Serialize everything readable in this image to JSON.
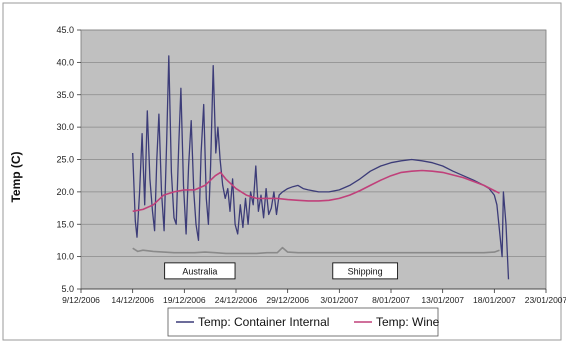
{
  "chart_data": {
    "type": "line",
    "ylabel": "Temp (C)",
    "ylim": [
      5.0,
      45.0
    ],
    "y_ticks": [
      "5.0",
      "10.0",
      "15.0",
      "20.0",
      "25.0",
      "30.0",
      "35.0",
      "40.0",
      "45.0"
    ],
    "x_range": [
      "2006-12-09",
      "2007-01-23"
    ],
    "x_ticks": [
      {
        "date": "2006-12-09",
        "label": "9/12/2006"
      },
      {
        "date": "2006-12-14",
        "label": "14/12/2006"
      },
      {
        "date": "2006-12-19",
        "label": "19/12/2006"
      },
      {
        "date": "2006-12-24",
        "label": "24/12/2006"
      },
      {
        "date": "2006-12-29",
        "label": "29/12/2006"
      },
      {
        "date": "2007-01-03",
        "label": "3/01/2007"
      },
      {
        "date": "2007-01-08",
        "label": "8/01/2007"
      },
      {
        "date": "2007-01-13",
        "label": "13/01/2007"
      },
      {
        "date": "2007-01-18",
        "label": "18/01/2007"
      },
      {
        "date": "2007-01-23",
        "label": "23/01/2007"
      }
    ],
    "grid": true,
    "plot_background": "#c0c0c0",
    "legend_position": "bottom",
    "annotations": [
      {
        "text": "Australia",
        "date": "2006-12-20T12:00",
        "y": 7.8
      },
      {
        "text": "Shipping",
        "date": "2007-01-05T12:00",
        "y": 7.8
      }
    ],
    "series": [
      {
        "name": "Temp: Container Internal",
        "color": "#3c3c78",
        "points": [
          [
            "2006-12-14T00:00",
            26.0
          ],
          [
            "2006-12-14T06:00",
            15.5
          ],
          [
            "2006-12-14T10:00",
            13.0
          ],
          [
            "2006-12-14T16:00",
            20.0
          ],
          [
            "2006-12-14T22:00",
            29.0
          ],
          [
            "2006-12-15T04:00",
            18.0
          ],
          [
            "2006-12-15T10:00",
            32.5
          ],
          [
            "2006-12-15T16:00",
            22.0
          ],
          [
            "2006-12-15T22:00",
            17.0
          ],
          [
            "2006-12-16T03:00",
            14.0
          ],
          [
            "2006-12-16T08:00",
            25.0
          ],
          [
            "2006-12-16T13:00",
            32.0
          ],
          [
            "2006-12-16T19:00",
            20.0
          ],
          [
            "2006-12-17T01:00",
            14.0
          ],
          [
            "2006-12-17T07:00",
            28.0
          ],
          [
            "2006-12-17T12:00",
            41.0
          ],
          [
            "2006-12-17T18:00",
            23.0
          ],
          [
            "2006-12-18T00:00",
            16.0
          ],
          [
            "2006-12-18T05:00",
            15.0
          ],
          [
            "2006-12-18T11:00",
            27.0
          ],
          [
            "2006-12-18T16:00",
            36.0
          ],
          [
            "2006-12-18T22:00",
            21.0
          ],
          [
            "2006-12-19T04:00",
            13.5
          ],
          [
            "2006-12-19T10:00",
            24.0
          ],
          [
            "2006-12-19T16:00",
            31.0
          ],
          [
            "2006-12-19T22:00",
            20.0
          ],
          [
            "2006-12-20T03:00",
            15.0
          ],
          [
            "2006-12-20T09:00",
            12.5
          ],
          [
            "2006-12-20T15:00",
            26.0
          ],
          [
            "2006-12-20T21:00",
            33.5
          ],
          [
            "2006-12-21T03:00",
            19.0
          ],
          [
            "2006-12-21T08:00",
            15.0
          ],
          [
            "2006-12-21T13:00",
            24.0
          ],
          [
            "2006-12-21T19:00",
            39.5
          ],
          [
            "2006-12-22T01:00",
            26.0
          ],
          [
            "2006-12-22T06:00",
            30.0
          ],
          [
            "2006-12-22T11:00",
            25.0
          ],
          [
            "2006-12-22T17:00",
            21.0
          ],
          [
            "2006-12-22T23:00",
            19.0
          ],
          [
            "2006-12-23T05:00",
            20.5
          ],
          [
            "2006-12-23T10:00",
            17.0
          ],
          [
            "2006-12-23T16:00",
            22.0
          ],
          [
            "2006-12-23T22:00",
            15.0
          ],
          [
            "2006-12-24T04:00",
            13.5
          ],
          [
            "2006-12-24T10:00",
            18.0
          ],
          [
            "2006-12-24T16:00",
            14.5
          ],
          [
            "2006-12-24T22:00",
            19.0
          ],
          [
            "2006-12-25T04:00",
            15.0
          ],
          [
            "2006-12-25T10:00",
            20.0
          ],
          [
            "2006-12-25T16:00",
            18.0
          ],
          [
            "2006-12-25T22:00",
            24.0
          ],
          [
            "2006-12-26T04:00",
            17.0
          ],
          [
            "2006-12-26T10:00",
            19.5
          ],
          [
            "2006-12-26T16:00",
            16.0
          ],
          [
            "2006-12-26T22:00",
            20.5
          ],
          [
            "2006-12-27T04:00",
            16.5
          ],
          [
            "2006-12-27T10:00",
            17.5
          ],
          [
            "2006-12-27T16:00",
            20.0
          ],
          [
            "2006-12-27T22:00",
            16.5
          ],
          [
            "2006-12-28T04:00",
            19.5
          ],
          [
            "2006-12-28T12:00",
            20.0
          ],
          [
            "2006-12-29T00:00",
            20.5
          ],
          [
            "2006-12-29T12:00",
            20.8
          ],
          [
            "2006-12-30T00:00",
            21.0
          ],
          [
            "2006-12-30T12:00",
            20.5
          ],
          [
            "2006-12-31T00:00",
            20.3
          ],
          [
            "2007-01-01T00:00",
            20.0
          ],
          [
            "2007-01-02T00:00",
            20.0
          ],
          [
            "2007-01-03T00:00",
            20.3
          ],
          [
            "2007-01-04T00:00",
            21.0
          ],
          [
            "2007-01-05T00:00",
            22.0
          ],
          [
            "2007-01-06T00:00",
            23.2
          ],
          [
            "2007-01-07T00:00",
            24.0
          ],
          [
            "2007-01-08T00:00",
            24.5
          ],
          [
            "2007-01-09T00:00",
            24.8
          ],
          [
            "2007-01-10T00:00",
            25.0
          ],
          [
            "2007-01-11T00:00",
            24.8
          ],
          [
            "2007-01-12T00:00",
            24.5
          ],
          [
            "2007-01-13T00:00",
            24.0
          ],
          [
            "2007-01-14T00:00",
            23.2
          ],
          [
            "2007-01-15T00:00",
            22.5
          ],
          [
            "2007-01-16T00:00",
            21.8
          ],
          [
            "2007-01-17T00:00",
            21.0
          ],
          [
            "2007-01-17T12:00",
            20.5
          ],
          [
            "2007-01-18T00:00",
            19.5
          ],
          [
            "2007-01-18T06:00",
            18.0
          ],
          [
            "2007-01-18T12:00",
            14.0
          ],
          [
            "2007-01-18T18:00",
            10.0
          ],
          [
            "2007-01-18T21:00",
            20.0
          ],
          [
            "2007-01-19T03:00",
            15.0
          ],
          [
            "2007-01-19T09:00",
            6.5
          ]
        ]
      },
      {
        "name": "Temp: Wine",
        "color": "#c0407a",
        "points": [
          [
            "2006-12-14T00:00",
            17.0
          ],
          [
            "2006-12-15T00:00",
            17.3
          ],
          [
            "2006-12-16T00:00",
            18.0
          ],
          [
            "2006-12-17T00:00",
            19.5
          ],
          [
            "2006-12-18T00:00",
            20.0
          ],
          [
            "2006-12-19T00:00",
            20.3
          ],
          [
            "2006-12-20T00:00",
            20.3
          ],
          [
            "2006-12-21T00:00",
            21.0
          ],
          [
            "2006-12-22T00:00",
            22.5
          ],
          [
            "2006-12-22T12:00",
            23.0
          ],
          [
            "2006-12-23T00:00",
            22.0
          ],
          [
            "2006-12-24T00:00",
            20.5
          ],
          [
            "2006-12-25T00:00",
            19.5
          ],
          [
            "2006-12-26T00:00",
            19.0
          ],
          [
            "2006-12-27T00:00",
            19.0
          ],
          [
            "2006-12-28T00:00",
            19.0
          ],
          [
            "2006-12-29T00:00",
            18.8
          ],
          [
            "2006-12-30T00:00",
            18.7
          ],
          [
            "2006-12-31T00:00",
            18.6
          ],
          [
            "2007-01-01T00:00",
            18.6
          ],
          [
            "2007-01-02T00:00",
            18.7
          ],
          [
            "2007-01-03T00:00",
            19.0
          ],
          [
            "2007-01-04T00:00",
            19.5
          ],
          [
            "2007-01-05T00:00",
            20.2
          ],
          [
            "2007-01-06T00:00",
            21.0
          ],
          [
            "2007-01-07T00:00",
            21.8
          ],
          [
            "2007-01-08T00:00",
            22.5
          ],
          [
            "2007-01-09T00:00",
            23.0
          ],
          [
            "2007-01-10T00:00",
            23.2
          ],
          [
            "2007-01-11T00:00",
            23.3
          ],
          [
            "2007-01-12T00:00",
            23.2
          ],
          [
            "2007-01-13T00:00",
            23.0
          ],
          [
            "2007-01-14T00:00",
            22.6
          ],
          [
            "2007-01-15T00:00",
            22.2
          ],
          [
            "2007-01-16T00:00",
            21.6
          ],
          [
            "2007-01-17T00:00",
            21.0
          ],
          [
            "2007-01-18T00:00",
            20.2
          ],
          [
            "2007-01-18T12:00",
            19.8
          ]
        ]
      },
      {
        "name": "",
        "color": "#8a8a8a",
        "points": [
          [
            "2006-12-14T00:00",
            11.3
          ],
          [
            "2006-12-14T12:00",
            10.8
          ],
          [
            "2006-12-15T00:00",
            11.0
          ],
          [
            "2006-12-16T00:00",
            10.8
          ],
          [
            "2006-12-17T00:00",
            10.7
          ],
          [
            "2006-12-18T00:00",
            10.6
          ],
          [
            "2006-12-19T00:00",
            10.6
          ],
          [
            "2006-12-20T00:00",
            10.6
          ],
          [
            "2006-12-21T00:00",
            10.7
          ],
          [
            "2006-12-22T00:00",
            10.6
          ],
          [
            "2006-12-23T00:00",
            10.5
          ],
          [
            "2006-12-24T00:00",
            10.5
          ],
          [
            "2006-12-25T00:00",
            10.5
          ],
          [
            "2006-12-26T00:00",
            10.5
          ],
          [
            "2006-12-27T00:00",
            10.6
          ],
          [
            "2006-12-28T00:00",
            10.6
          ],
          [
            "2006-12-28T12:00",
            11.4
          ],
          [
            "2006-12-29T00:00",
            10.7
          ],
          [
            "2006-12-30T00:00",
            10.6
          ],
          [
            "2007-01-01T00:00",
            10.6
          ],
          [
            "2007-01-03T00:00",
            10.6
          ],
          [
            "2007-01-05T00:00",
            10.6
          ],
          [
            "2007-01-07T00:00",
            10.6
          ],
          [
            "2007-01-09T00:00",
            10.6
          ],
          [
            "2007-01-11T00:00",
            10.6
          ],
          [
            "2007-01-13T00:00",
            10.6
          ],
          [
            "2007-01-15T00:00",
            10.6
          ],
          [
            "2007-01-17T00:00",
            10.6
          ],
          [
            "2007-01-18T00:00",
            10.7
          ],
          [
            "2007-01-18T12:00",
            11.0
          ]
        ]
      }
    ]
  }
}
